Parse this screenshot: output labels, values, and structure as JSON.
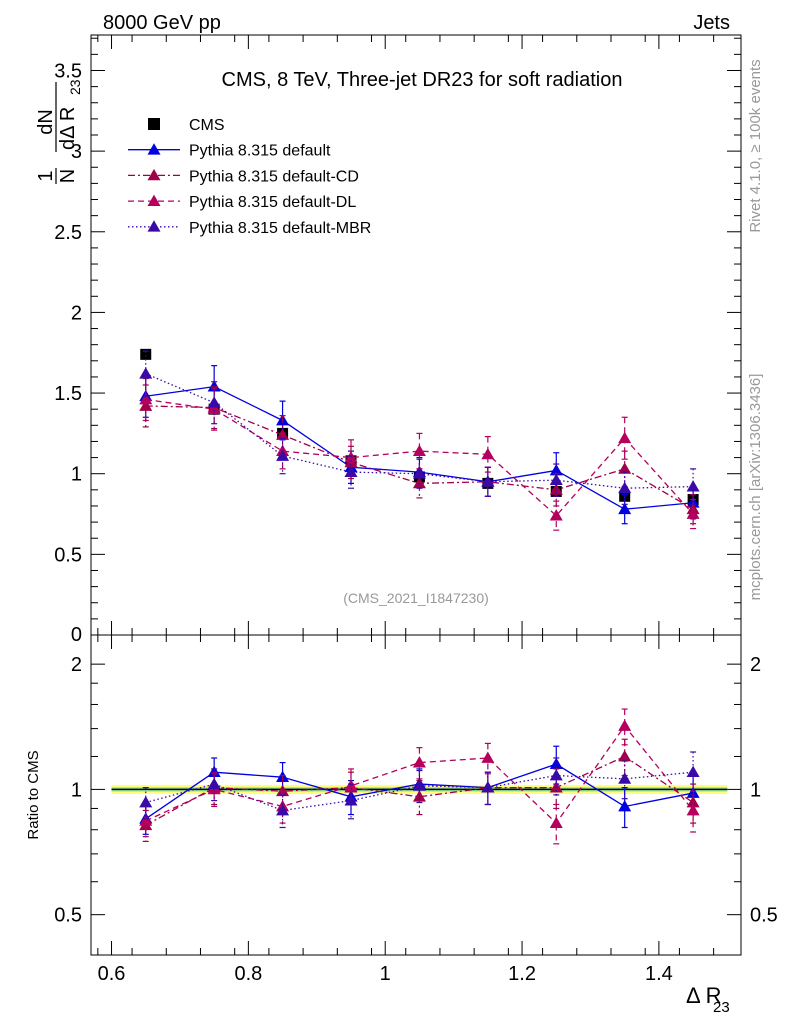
{
  "header": {
    "left": "8000 GeV pp",
    "right": "Jets"
  },
  "side_labels": {
    "rivet": "Rivet 4.1.0, ≥ 100k events",
    "mcplots": "mcplots.cern.ch [arXiv:1306.3436]"
  },
  "colors": {
    "cms": "#000000",
    "default": "#0000e0",
    "cd": "#a0004a",
    "dl": "#b5005e",
    "mbr": "#3a0aa8",
    "band_yellow": "#ffff66",
    "band_green": "#99e699"
  },
  "chart_data": [
    {
      "type": "line",
      "title": "CMS, 8 TeV, Three-jet DR23 for soft radiation",
      "analysis_id": "(CMS_2021_I1847230)",
      "ylabel": "1/N dN/dΔ R23",
      "ylabel_parts": {
        "n1": "1",
        "n": "N",
        "dn": "dN",
        "d": "dΔ R",
        "sub": "23"
      },
      "xlim": [
        0.57,
        1.52
      ],
      "ylim": [
        0,
        3.72
      ],
      "yticks": [
        0.5,
        1,
        1.5,
        2,
        2.5,
        3,
        3.5
      ],
      "ytick_labels": [
        "0.5",
        "1",
        "1.5",
        "2",
        "2.5",
        "3",
        "3.5"
      ],
      "y_zero_label": "0",
      "x": [
        0.65,
        0.75,
        0.85,
        0.95,
        1.05,
        1.15,
        1.25,
        1.35,
        1.45
      ],
      "series": [
        {
          "name": "CMS",
          "key": "cms",
          "marker": "square",
          "values": [
            1.74,
            1.4,
            1.25,
            1.08,
            0.98,
            0.94,
            0.89,
            0.86,
            0.84
          ],
          "err": [
            0.02,
            0.02,
            0.02,
            0.02,
            0.02,
            0.02,
            0.02,
            0.02,
            0.02
          ]
        },
        {
          "name": "Pythia 8.315 default",
          "key": "default",
          "dash": "solid",
          "values": [
            1.48,
            1.54,
            1.33,
            1.04,
            1.01,
            0.95,
            1.02,
            0.78,
            0.82
          ],
          "err": [
            0.13,
            0.13,
            0.12,
            0.1,
            0.09,
            0.09,
            0.11,
            0.09,
            0.1
          ]
        },
        {
          "name": "Pythia 8.315 default-CD",
          "key": "cd",
          "dash": "dashdot",
          "values": [
            1.42,
            1.41,
            1.24,
            1.07,
            0.94,
            0.95,
            0.9,
            1.03,
            0.78
          ],
          "err": [
            0.13,
            0.13,
            0.12,
            0.1,
            0.09,
            0.09,
            0.1,
            0.11,
            0.09
          ]
        },
        {
          "name": "Pythia 8.315 default-DL",
          "key": "dl",
          "dash": "dashed",
          "values": [
            1.46,
            1.4,
            1.14,
            1.1,
            1.14,
            1.12,
            0.74,
            1.22,
            0.75
          ],
          "err": [
            0.13,
            0.13,
            0.11,
            0.11,
            0.11,
            0.11,
            0.09,
            0.13,
            0.09
          ]
        },
        {
          "name": "Pythia 8.315 default-MBR",
          "key": "mbr",
          "dash": "dotted",
          "values": [
            1.62,
            1.44,
            1.11,
            1.01,
            1.0,
            0.95,
            0.96,
            0.91,
            0.92
          ],
          "err": [
            0.14,
            0.13,
            0.11,
            0.1,
            0.09,
            0.09,
            0.1,
            0.1,
            0.11
          ]
        }
      ]
    },
    {
      "type": "line",
      "ylabel": "Ratio to CMS",
      "xlabel": "Δ R",
      "xlabel_sub": "23",
      "yscale": "log",
      "ylim": [
        0.4,
        2.35
      ],
      "yticks": [
        0.5,
        1,
        2
      ],
      "ytick_labels": [
        "0.5",
        "1",
        "2"
      ],
      "xticks": [
        0.6,
        0.8,
        1.0,
        1.2,
        1.4
      ],
      "xtick_labels": [
        "0.6",
        "0.8",
        "1",
        "1.2",
        "1.4"
      ],
      "x": [
        0.65,
        0.75,
        0.85,
        0.95,
        1.05,
        1.15,
        1.25,
        1.35,
        1.45
      ],
      "series": [
        {
          "name": "Pythia 8.315 default",
          "key": "default",
          "dash": "solid",
          "values": [
            0.85,
            1.1,
            1.07,
            0.96,
            1.03,
            1.01,
            1.15,
            0.91,
            0.98
          ],
          "err": [
            0.07,
            0.09,
            0.09,
            0.09,
            0.09,
            0.09,
            0.12,
            0.1,
            0.11
          ]
        },
        {
          "name": "Pythia 8.315 default-CD",
          "key": "cd",
          "dash": "dashdot",
          "values": [
            0.82,
            1.01,
            0.99,
            1.01,
            0.96,
            1.01,
            1.01,
            1.2,
            0.93
          ],
          "err": [
            0.07,
            0.09,
            0.09,
            0.09,
            0.09,
            0.09,
            0.11,
            0.12,
            0.1
          ]
        },
        {
          "name": "Pythia 8.315 default-DL",
          "key": "dl",
          "dash": "dashed",
          "values": [
            0.84,
            1.0,
            0.91,
            1.02,
            1.16,
            1.19,
            0.83,
            1.42,
            0.89
          ],
          "err": [
            0.07,
            0.09,
            0.08,
            0.1,
            0.1,
            0.1,
            0.09,
            0.14,
            0.1
          ]
        },
        {
          "name": "Pythia 8.315 default-MBR",
          "key": "mbr",
          "dash": "dotted",
          "values": [
            0.93,
            1.03,
            0.89,
            0.94,
            1.02,
            1.01,
            1.08,
            1.06,
            1.1
          ],
          "err": [
            0.08,
            0.09,
            0.08,
            0.09,
            0.09,
            0.09,
            0.11,
            0.11,
            0.13
          ]
        }
      ]
    }
  ]
}
